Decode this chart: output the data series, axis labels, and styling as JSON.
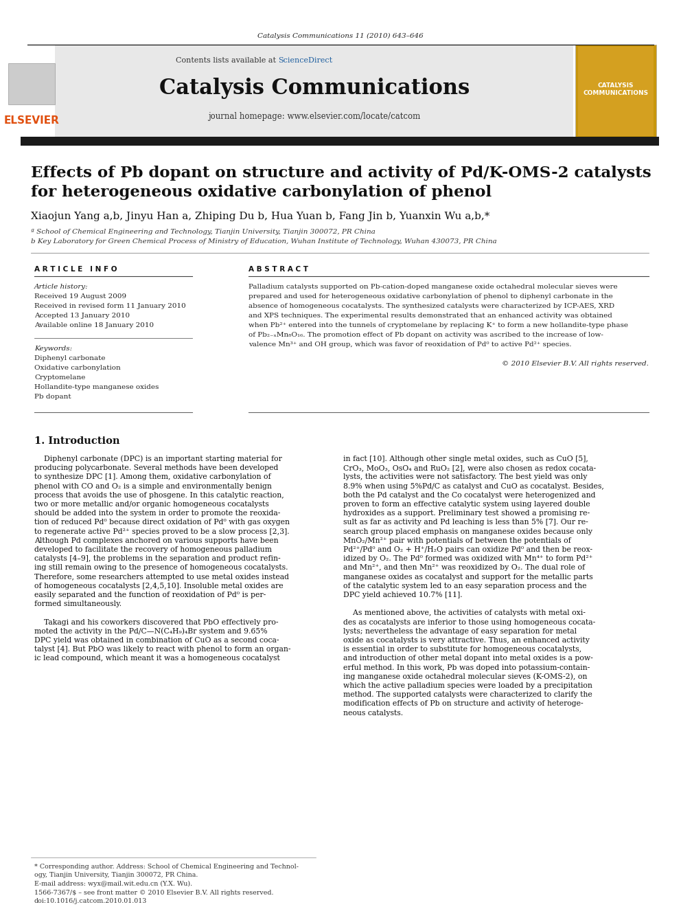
{
  "journal_ref": "Catalysis Communications 11 (2010) 643–646",
  "header_text": "Contents lists available at ScienceDirect",
  "sciencedirect_color": "#2060a0",
  "journal_name": "Catalysis Communications",
  "journal_homepage": "journal homepage: www.elsevier.com/locate/catcom",
  "thick_bar_color": "#1a1a1a",
  "header_bg": "#e8e8e8",
  "paper_title_line1": "Effects of Pb dopant on structure and activity of Pd/K-OMS-2 catalysts",
  "paper_title_line2": "for heterogeneous oxidative carbonylation of phenol",
  "authors": "Xiaojun Yang a,b, Jinyu Han a, Zhiping Du b, Hua Yuan b, Fang Jin b, Yuanxin Wu a,b,*",
  "affil_a": "ª School of Chemical Engineering and Technology, Tianjin University, Tianjin 300072, PR China",
  "affil_b": "b Key Laboratory for Green Chemical Process of Ministry of Education, Wuhan Institute of Technology, Wuhan 430073, PR China",
  "article_info_title": "A R T I C L E   I N F O",
  "abstract_title": "A B S T R A C T",
  "article_history_label": "Article history:",
  "received": "Received 19 August 2009",
  "revised": "Received in revised form 11 January 2010",
  "accepted": "Accepted 13 January 2010",
  "available": "Available online 18 January 2010",
  "keywords_label": "Keywords:",
  "keyword1": "Diphenyl carbonate",
  "keyword2": "Oxidative carbonylation",
  "keyword3": "Cryptomelane",
  "keyword4": "Hollandite-type manganese oxides",
  "keyword5": "Pb dopant",
  "copyright": "© 2010 Elsevier B.V. All rights reserved.",
  "section1_title": "1. Introduction",
  "footer_text1": "* Corresponding author. Address: School of Chemical Engineering and Technol-",
  "footer_text2": "ogy, Tianjin University, Tianjin 300072, PR China.",
  "footer_text3": "E-mail address: wyx@mail.wit.edu.cn (Y.X. Wu).",
  "footer_issn": "1566-7367/$ – see front matter © 2010 Elsevier B.V. All rights reserved.",
  "footer_doi": "doi:10.1016/j.catcom.2010.01.013",
  "elsevier_color": "#e05010",
  "bg_color": "#ffffff",
  "text_color": "#000000"
}
